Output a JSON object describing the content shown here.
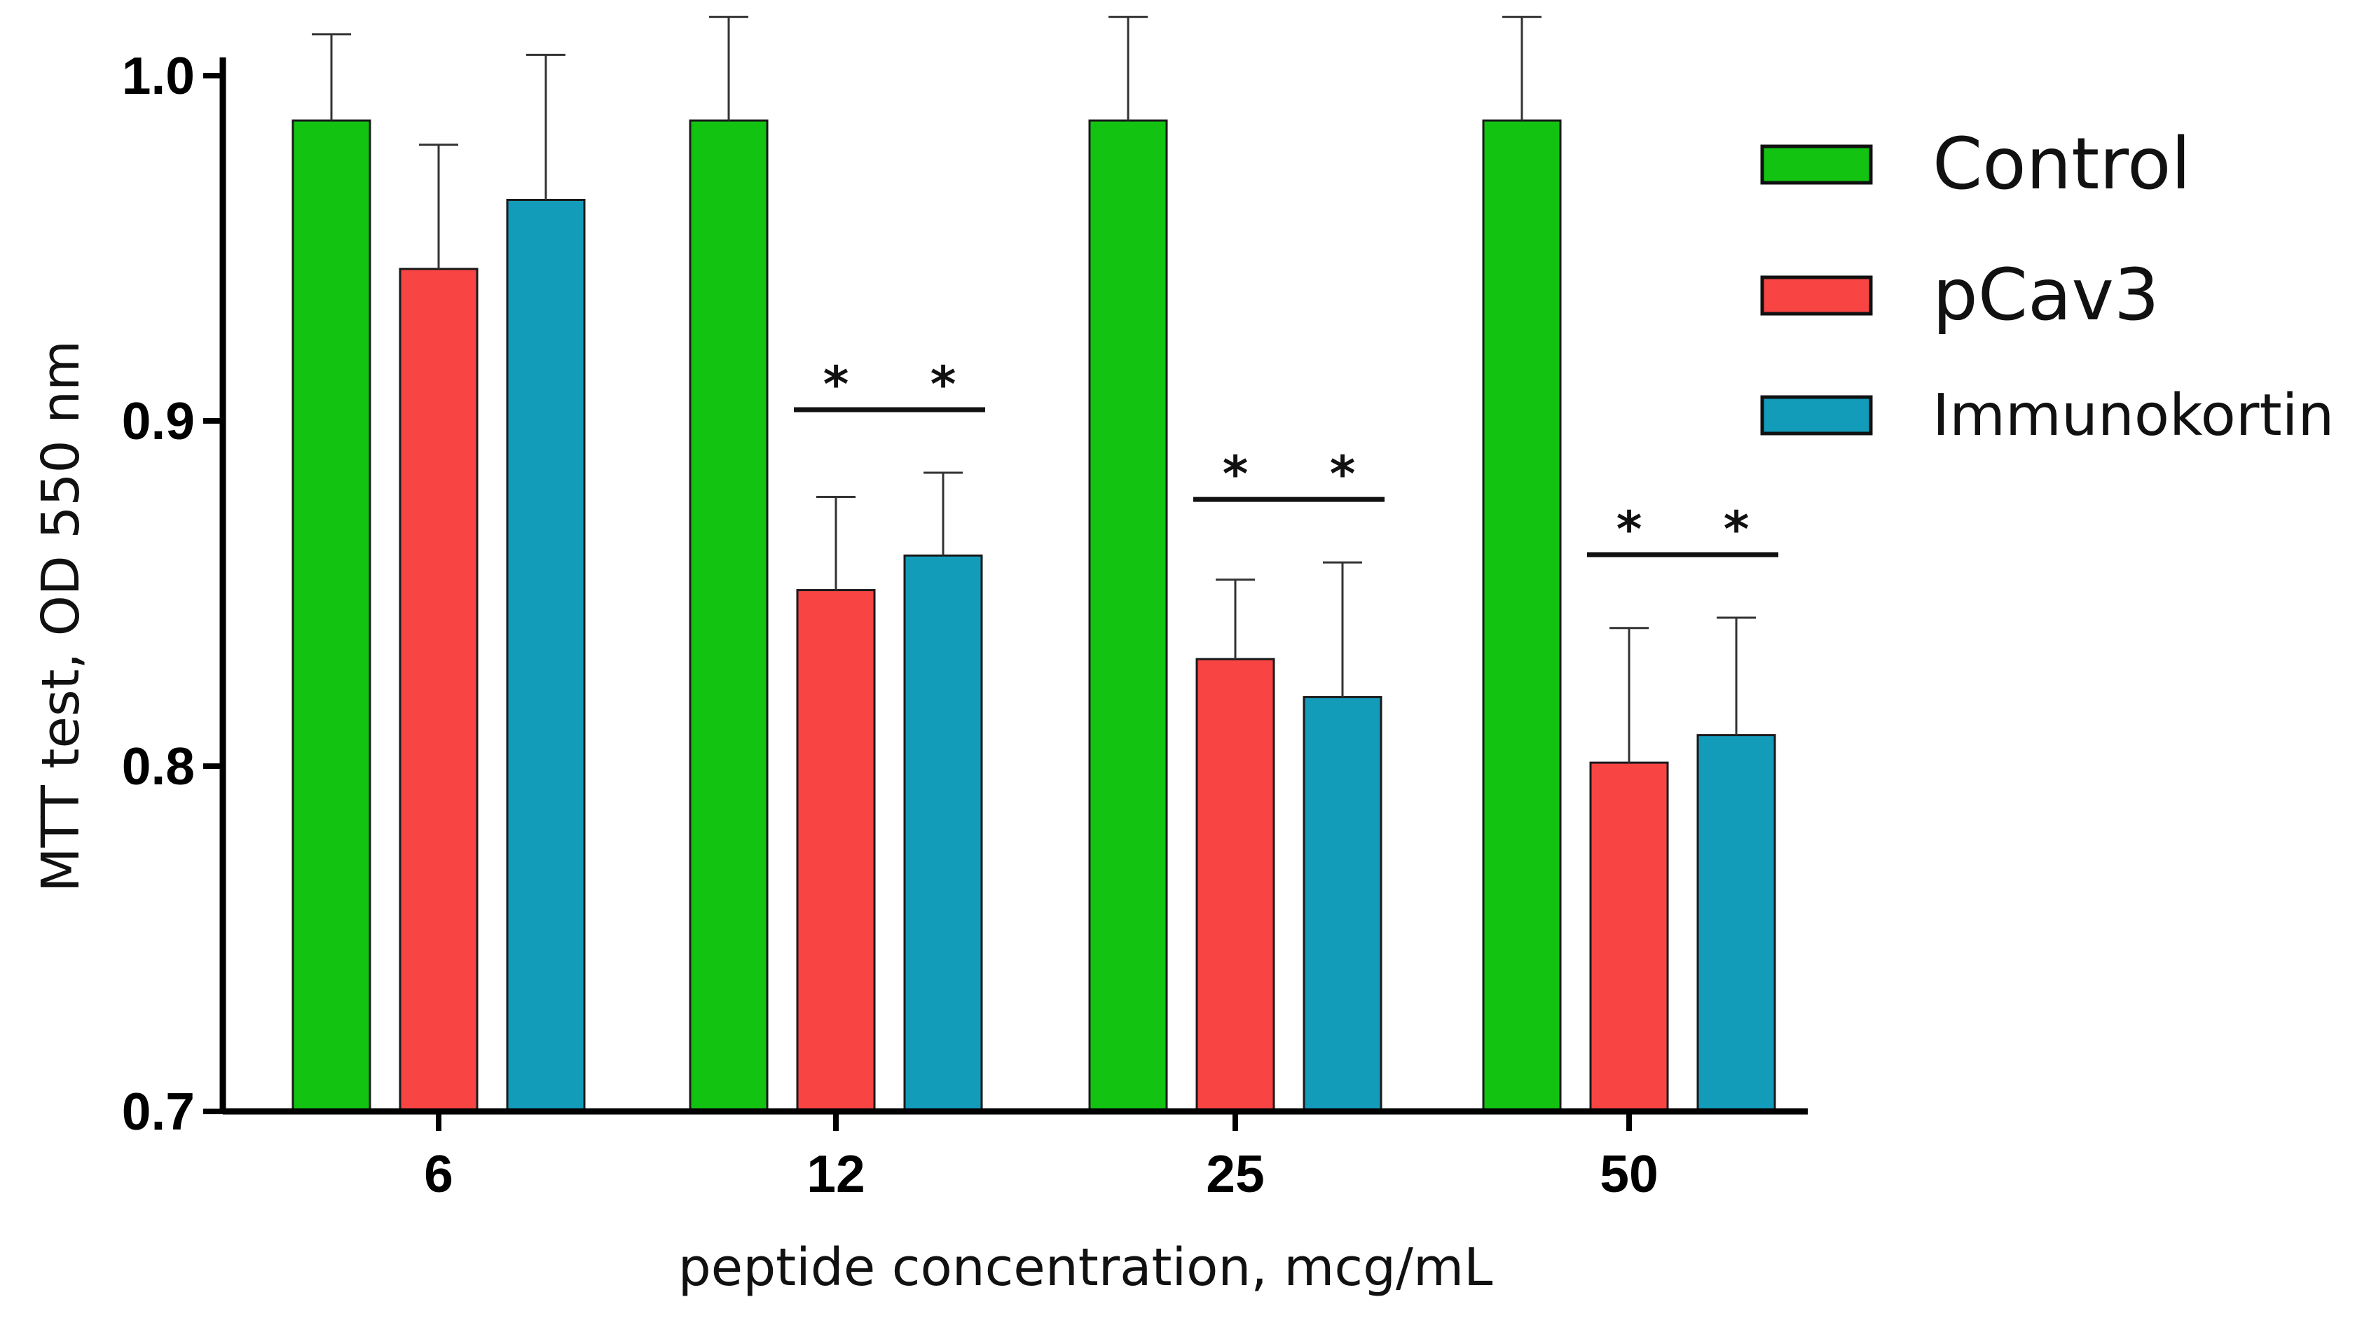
{
  "chart_data": {
    "type": "bar",
    "title": "",
    "xlabel": "peptide concentration,  mcg/mL",
    "ylabel": "MTT test,  OD  550 nm",
    "ylim": [
      0.7,
      1.0
    ],
    "yticks": [
      0.7,
      0.8,
      0.9,
      1.0
    ],
    "ytick_labels": [
      "0.7",
      "0.8",
      "0.9",
      "1.0"
    ],
    "categories": [
      "6",
      "12",
      "25",
      "50"
    ],
    "series": [
      {
        "name": "Control",
        "color": "#12c312",
        "values": [
          0.987,
          0.987,
          0.987,
          0.987
        ],
        "errors": [
          0.025,
          0.03,
          0.03,
          0.03
        ]
      },
      {
        "name": "pCav3",
        "color": "#f94444",
        "values": [
          0.944,
          0.851,
          0.831,
          0.801
        ],
        "errors": [
          0.036,
          0.027,
          0.023,
          0.039
        ]
      },
      {
        "name": "Immunokortin",
        "color": "#139bba",
        "values": [
          0.964,
          0.861,
          0.82,
          0.809
        ],
        "errors": [
          0.042,
          0.024,
          0.039,
          0.034
        ]
      }
    ],
    "annotations": [
      {
        "category": "12",
        "label": "*",
        "series": "pCav3"
      },
      {
        "category": "12",
        "label": "*",
        "series": "Immunokortin"
      },
      {
        "category": "25",
        "label": "*",
        "series": "pCav3"
      },
      {
        "category": "25",
        "label": "*",
        "series": "Immunokortin"
      },
      {
        "category": "50",
        "label": "*",
        "series": "pCav3"
      },
      {
        "category": "50",
        "label": "*",
        "series": "Immunokortin"
      }
    ],
    "legend_position": "top-right",
    "grid": false
  }
}
